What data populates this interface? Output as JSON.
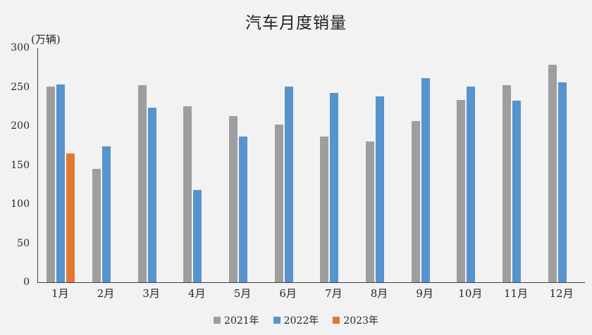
{
  "chart_data": {
    "type": "bar",
    "title": "汽车月度销量",
    "unit_label": "(万辆)",
    "categories": [
      "1月",
      "2月",
      "3月",
      "4月",
      "5月",
      "6月",
      "7月",
      "8月",
      "9月",
      "10月",
      "11月",
      "12月"
    ],
    "series": [
      {
        "name": "2021年",
        "color": "#9E9E9E",
        "values": [
          250.3,
          145.5,
          252.6,
          225.2,
          212.8,
          201.5,
          186.4,
          179.9,
          206.7,
          233.3,
          252.2,
          278.6
        ]
      },
      {
        "name": "2022年",
        "color": "#5694CE",
        "values": [
          253.1,
          173.7,
          223.4,
          118.1,
          186.2,
          250.2,
          242.0,
          238.3,
          261.0,
          250.5,
          232.8,
          255.6
        ]
      },
      {
        "name": "2023年",
        "color": "#E3782F",
        "values": [
          164.9,
          null,
          null,
          null,
          null,
          null,
          null,
          null,
          null,
          null,
          null,
          null
        ]
      }
    ],
    "ylim": [
      0,
      300
    ],
    "ytick_step": 50,
    "grid": false,
    "legend_position": "bottom",
    "background_color": "#F2F2F2",
    "axis_color": "#3f3f3f"
  }
}
